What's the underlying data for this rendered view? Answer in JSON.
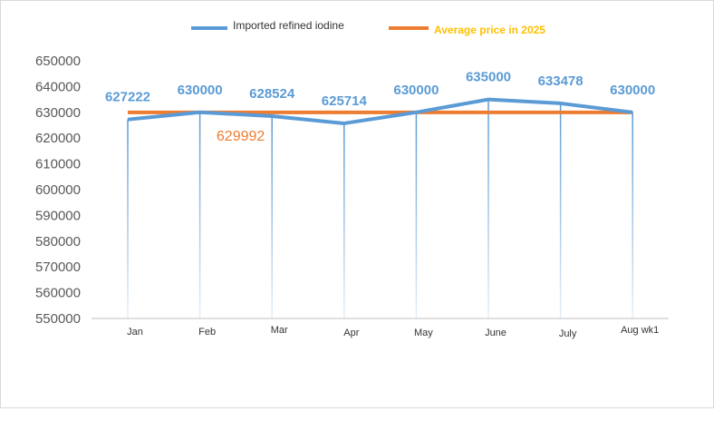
{
  "chart_data": {
    "type": "line",
    "title": "",
    "xlabel": "",
    "ylabel": "",
    "categories": [
      "Jan",
      "Feb",
      "Mar",
      "Apr",
      "May",
      "June",
      "July",
      "Aug wk1"
    ],
    "ylim": [
      550000,
      650000
    ],
    "yticks": [
      "650000",
      "640000",
      "630000",
      "620000",
      "610000",
      "600000",
      "590000",
      "580000",
      "570000",
      "560000",
      "550000"
    ],
    "series": [
      {
        "name": "Imported refined iodine",
        "color": "#5b9bd5",
        "values": [
          627222,
          630000,
          628524,
          625714,
          630000,
          635000,
          633478,
          630000
        ],
        "labels": [
          "627222",
          "630000",
          "628524",
          "625714",
          "630000",
          "635000",
          "633478",
          "630000"
        ]
      },
      {
        "name": "Average price in 2025",
        "color": "#ed7d31",
        "values": [
          629992,
          629992,
          629992,
          629992,
          629992,
          629992,
          629992,
          629992
        ],
        "label_text": "629992"
      }
    ],
    "drop_lines": true,
    "grid": false,
    "legend_position": "top"
  },
  "colors": {
    "blue": "#5b9bd5",
    "orange": "#ed7d31",
    "legend_orange_text": "#ffc000",
    "axis": "#bfbfbf"
  }
}
